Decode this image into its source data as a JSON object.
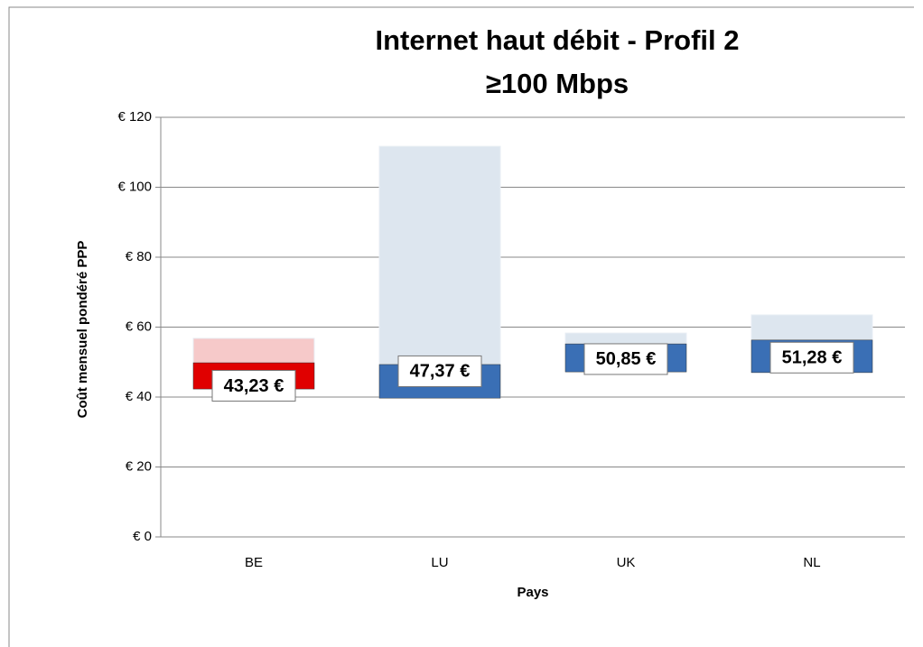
{
  "chart_data": {
    "type": "floating-bar",
    "title": [
      "Internet haut débit - Profil 2",
      "≥100 Mbps"
    ],
    "y_label": "Coût mensuel pondéré PPP",
    "x_label": "Pays",
    "categories": [
      "BE",
      "LU",
      "UK",
      "NL"
    ],
    "min": [
      42.3,
      39.7,
      47.2,
      47.0
    ],
    "mid": [
      49.8,
      49.3,
      55.2,
      56.3
    ],
    "max": [
      56.8,
      111.7,
      58.3,
      63.5
    ],
    "values": [
      43.23,
      47.37,
      50.85,
      51.28
    ],
    "value_labels": [
      "43,23 €",
      "47,37 €",
      "50,85 €",
      "51,28 €"
    ],
    "colors": [
      "#e00000",
      "#3a6fb5",
      "#3a6fb5",
      "#3a6fb5"
    ],
    "light_colors": [
      "#f6c9c9",
      "#dde6ef",
      "#dde6ef",
      "#dde6ef"
    ],
    "ylim": [
      0,
      120
    ],
    "yticks": [
      {
        "value": 0,
        "label": "€ 0"
      },
      {
        "value": 20,
        "label": "€ 20"
      },
      {
        "value": 40,
        "label": "€ 40"
      },
      {
        "value": 60,
        "label": "€ 60"
      },
      {
        "value": 80,
        "label": "€ 80"
      },
      {
        "value": 100,
        "label": "€ 100"
      },
      {
        "value": 120,
        "label": "€ 120"
      }
    ],
    "grid": true
  }
}
